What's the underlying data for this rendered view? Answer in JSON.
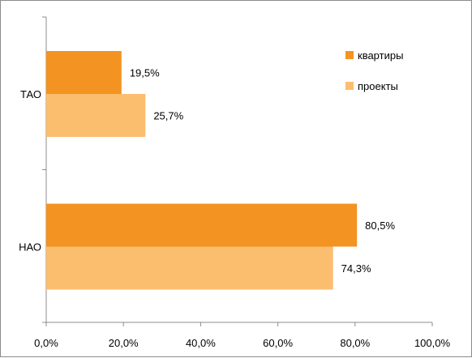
{
  "chart_data": {
    "type": "bar",
    "orientation": "horizontal",
    "categories": [
      "ТАО",
      "НАО"
    ],
    "series": [
      {
        "name": "квартиры",
        "values": [
          19.5,
          80.5
        ],
        "labels": [
          "19,5%",
          "80,5%"
        ],
        "color": "#F39322"
      },
      {
        "name": "проекты",
        "values": [
          25.7,
          74.3
        ],
        "labels": [
          "25,7%",
          "74,3%"
        ],
        "color": "#FBBD6E"
      }
    ],
    "xlim": [
      0,
      100
    ],
    "x_ticks": [
      "0,0%",
      "20,0%",
      "40,0%",
      "60,0%",
      "80,0%",
      "100,0%"
    ],
    "grid": false,
    "legend_position": "top-right"
  }
}
